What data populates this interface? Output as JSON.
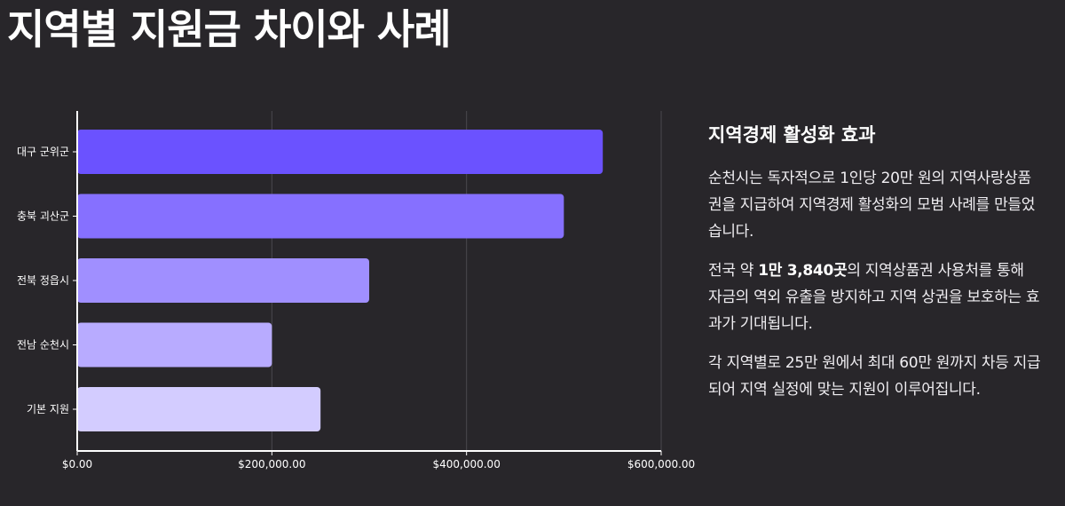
{
  "page": {
    "title": "지역별 지원금 차이와 사례"
  },
  "chart_data": {
    "type": "bar",
    "orientation": "horizontal",
    "categories": [
      "대구 군위군",
      "충북 괴산군",
      "전북 정읍시",
      "전남 순천시",
      "기본 지원"
    ],
    "values": [
      540000,
      500000,
      300000,
      200000,
      250000
    ],
    "colors": [
      "#6b52ff",
      "#8670ff",
      "#a08fff",
      "#b8abff",
      "#d3ccff"
    ],
    "xlim": [
      0,
      600000
    ],
    "xticks": [
      0,
      200000,
      400000,
      600000
    ],
    "xtick_labels": [
      "$0.00",
      "$200,000.00",
      "$400,000.00",
      "$600,000.00"
    ],
    "grid": true,
    "title": "",
    "xlabel": "",
    "ylabel": ""
  },
  "side": {
    "heading": "지역경제 활성화 효과",
    "p1": "순천시는 독자적으로 1인당 20만 원의 지역사랑상품권을 지급하여 지역경제 활성화의 모범 사례를 만들었습니다.",
    "p2_pre": "전국 약 ",
    "p2_bold": "1만 3,840곳",
    "p2_post": "의 지역상품권 사용처를 통해 자금의 역외 유출을 방지하고 지역 상권을 보호하는 효과가 기대됩니다.",
    "p3": "각 지역별로 25만 원에서 최대 60만 원까지 차등 지급되어 지역 실정에 맞는 지원이 이루어집니다."
  }
}
